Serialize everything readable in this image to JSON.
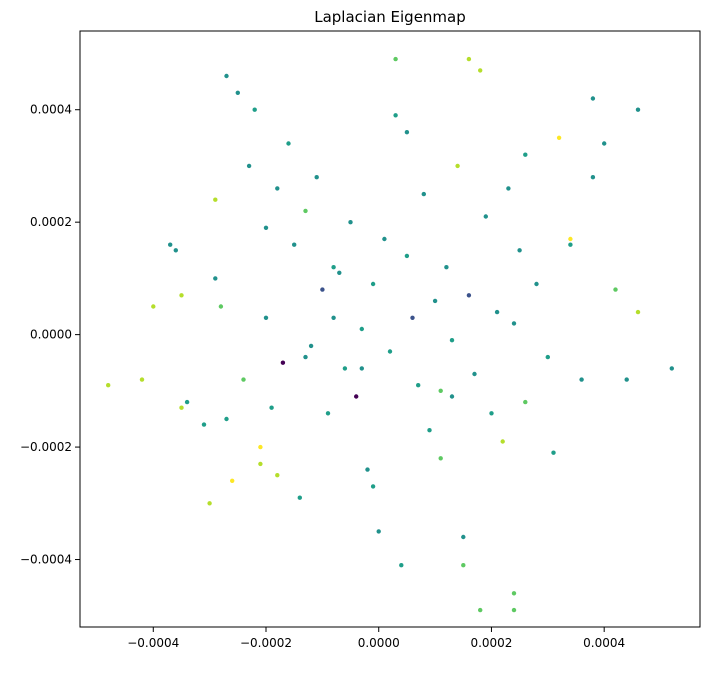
{
  "chart_data": {
    "type": "scatter",
    "title": "Laplacian Eigenmap",
    "xlabel": "",
    "ylabel": "",
    "xlim": [
      -0.00053,
      0.00057
    ],
    "ylim": [
      -0.00052,
      0.00054
    ],
    "xticks": [
      -0.0004,
      -0.0002,
      0.0,
      0.0002,
      0.0004
    ],
    "xtick_labels": [
      "−0.0004",
      "−0.0002",
      "0.0000",
      "0.0002",
      "0.0004"
    ],
    "yticks": [
      -0.0004,
      -0.0002,
      0.0,
      0.0002,
      0.0004
    ],
    "ytick_labels": [
      "−0.0004",
      "−0.0002",
      "0.0000",
      "0.0002",
      "0.0004"
    ],
    "grid": false,
    "legend": "none",
    "colormap": [
      "#440154",
      "#3b528b",
      "#21918c",
      "#1f9e89",
      "#5ec962",
      "#b5de2b",
      "#fde725"
    ],
    "series": [
      {
        "points_note_values": "approximate sampled points read from the plot; color index into colormap",
        "x": [
          -0.00048,
          -0.00042,
          -0.0004,
          -0.00037,
          -0.00036,
          -0.00035,
          -0.00034,
          -0.00031,
          -0.0003,
          -0.00029,
          -0.00028,
          -0.00027,
          -0.00026,
          -0.00025,
          -0.00024,
          -0.00023,
          -0.00022,
          -0.00021,
          -0.0002,
          -0.00019,
          -0.00018,
          -0.00017,
          -0.00016,
          -0.00015,
          -0.00014,
          -0.00013,
          -0.00012,
          -0.00011,
          -0.0001,
          -9e-05,
          -8e-05,
          -7e-05,
          -6e-05,
          -5e-05,
          -4e-05,
          -3e-05,
          -2e-05,
          -1e-05,
          0.0,
          1e-05,
          2e-05,
          3e-05,
          4e-05,
          5e-05,
          6e-05,
          7e-05,
          8e-05,
          9e-05,
          0.0001,
          0.00011,
          0.00012,
          0.00013,
          0.00014,
          0.00015,
          0.00016,
          0.00017,
          0.00018,
          0.00019,
          0.0002,
          0.00021,
          0.00022,
          0.00023,
          0.00024,
          0.00025,
          0.00026,
          0.00028,
          0.0003,
          0.00032,
          0.00034,
          0.00036,
          0.00038,
          0.0004,
          0.00042,
          0.00044,
          0.00046,
          0.00052,
          0.00046,
          0.00038,
          0.00031,
          0.00024,
          0.00016,
          0.00013,
          5e-05,
          -3e-05,
          -8e-05,
          -0.00013,
          -0.0002,
          -0.00027,
          -0.00035,
          0.00018,
          0.00024,
          0.00015,
          3e-05,
          -1e-05,
          -0.00018,
          -0.00029,
          0.00034,
          0.00026,
          -0.00021,
          0.00011
        ],
        "y": [
          -9e-05,
          -8e-05,
          5e-05,
          0.00016,
          0.00015,
          -0.00013,
          -0.00012,
          -0.00016,
          -0.0003,
          0.00024,
          5e-05,
          0.00046,
          -0.00026,
          0.00043,
          -8e-05,
          0.0003,
          0.0004,
          -0.00023,
          0.00019,
          -0.00013,
          0.00026,
          -5e-05,
          0.00034,
          0.00016,
          -0.00029,
          0.00022,
          -2e-05,
          0.00028,
          8e-05,
          -0.00014,
          3e-05,
          0.00011,
          -6e-05,
          0.0002,
          -0.00011,
          1e-05,
          -0.00024,
          9e-05,
          -0.00035,
          0.00017,
          -3e-05,
          0.00049,
          -0.00041,
          0.00036,
          3e-05,
          -9e-05,
          0.00025,
          -0.00017,
          6e-05,
          -0.00022,
          0.00012,
          -1e-05,
          0.0003,
          -0.00041,
          0.00049,
          -7e-05,
          -0.00049,
          0.00021,
          -0.00014,
          4e-05,
          -0.00019,
          0.00026,
          -0.00046,
          0.00015,
          -0.00012,
          9e-05,
          -4e-05,
          0.00035,
          0.00016,
          -8e-05,
          0.00042,
          0.00034,
          8e-05,
          -8e-05,
          0.0004,
          -6e-05,
          4e-05,
          0.00028,
          -0.00021,
          2e-05,
          7e-05,
          -0.00011,
          0.00014,
          -6e-05,
          0.00012,
          -4e-05,
          3e-05,
          -0.00015,
          7e-05,
          0.00047,
          -0.00049,
          -0.00036,
          0.00039,
          -0.00027,
          -0.00025,
          0.0001,
          0.00017,
          0.00032,
          -0.0002,
          -0.0001
        ],
        "c": [
          5,
          5,
          5,
          2,
          2,
          5,
          3,
          3,
          5,
          5,
          4,
          2,
          6,
          2,
          4,
          2,
          3,
          5,
          2,
          3,
          2,
          0,
          3,
          2,
          3,
          4,
          2,
          2,
          1,
          3,
          2,
          2,
          3,
          2,
          0,
          3,
          2,
          3,
          2,
          2,
          3,
          4,
          3,
          2,
          1,
          3,
          2,
          3,
          2,
          4,
          2,
          3,
          5,
          4,
          5,
          2,
          4,
          2,
          3,
          2,
          5,
          2,
          4,
          2,
          4,
          2,
          3,
          6,
          3,
          2,
          2,
          2,
          4,
          2,
          2,
          2,
          5,
          2,
          3,
          2,
          1,
          2,
          3,
          2,
          3,
          2,
          2,
          3,
          5,
          5,
          4,
          2,
          3,
          3,
          5,
          2,
          6,
          3,
          6,
          4
        ]
      }
    ]
  }
}
